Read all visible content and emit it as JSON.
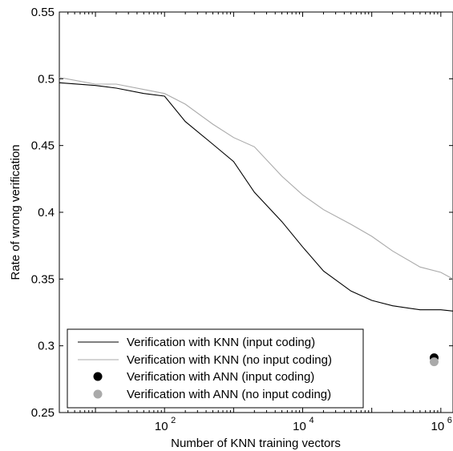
{
  "chart_data": {
    "type": "line",
    "xlabel": "Number of KNN training vectors",
    "ylabel": "Rate of wrong verification",
    "x_scale": "log",
    "xlim": [
      3,
      1500000
    ],
    "ylim": [
      0.25,
      0.55
    ],
    "y_ticks": [
      0.25,
      0.3,
      0.35,
      0.4,
      0.45,
      0.5,
      0.55
    ],
    "y_tick_labels": [
      "0.25",
      "0.3",
      "0.35",
      "0.4",
      "0.45",
      "0.5",
      "0.55"
    ],
    "x_ticks": [
      100,
      10000,
      1000000
    ],
    "x_tick_labels": [
      {
        "base": "10",
        "exp": "2"
      },
      {
        "base": "10",
        "exp": "4"
      },
      {
        "base": "10",
        "exp": "6"
      }
    ],
    "grid": false,
    "legend_position": "lower-left",
    "series": [
      {
        "name": "Verification with KNN (input coding)",
        "kind": "line",
        "color": "#000000",
        "x": [
          3,
          10,
          20,
          50,
          100,
          200,
          500,
          1000,
          2000,
          5000,
          10000,
          20000,
          50000,
          100000,
          200000,
          500000,
          1000000,
          1500000
        ],
        "y": [
          0.497,
          0.495,
          0.493,
          0.489,
          0.487,
          0.468,
          0.451,
          0.438,
          0.415,
          0.393,
          0.374,
          0.356,
          0.341,
          0.334,
          0.33,
          0.327,
          0.327,
          0.326
        ]
      },
      {
        "name": "Verification with KNN (no input coding)",
        "kind": "line",
        "color": "#aaaaaa",
        "x": [
          3,
          10,
          20,
          50,
          100,
          200,
          500,
          1000,
          2000,
          5000,
          10000,
          20000,
          50000,
          100000,
          200000,
          500000,
          1000000,
          1500000
        ],
        "y": [
          0.501,
          0.496,
          0.496,
          0.492,
          0.489,
          0.481,
          0.466,
          0.456,
          0.449,
          0.427,
          0.413,
          0.402,
          0.391,
          0.382,
          0.371,
          0.359,
          0.355,
          0.35
        ]
      },
      {
        "name": "Verification with ANN (input coding)",
        "kind": "point",
        "color": "#000000",
        "x": [
          800000
        ],
        "y": [
          0.291
        ]
      },
      {
        "name": "Verification with ANN (no input coding)",
        "kind": "point",
        "color": "#aaaaaa",
        "x": [
          800000
        ],
        "y": [
          0.288
        ]
      }
    ]
  }
}
